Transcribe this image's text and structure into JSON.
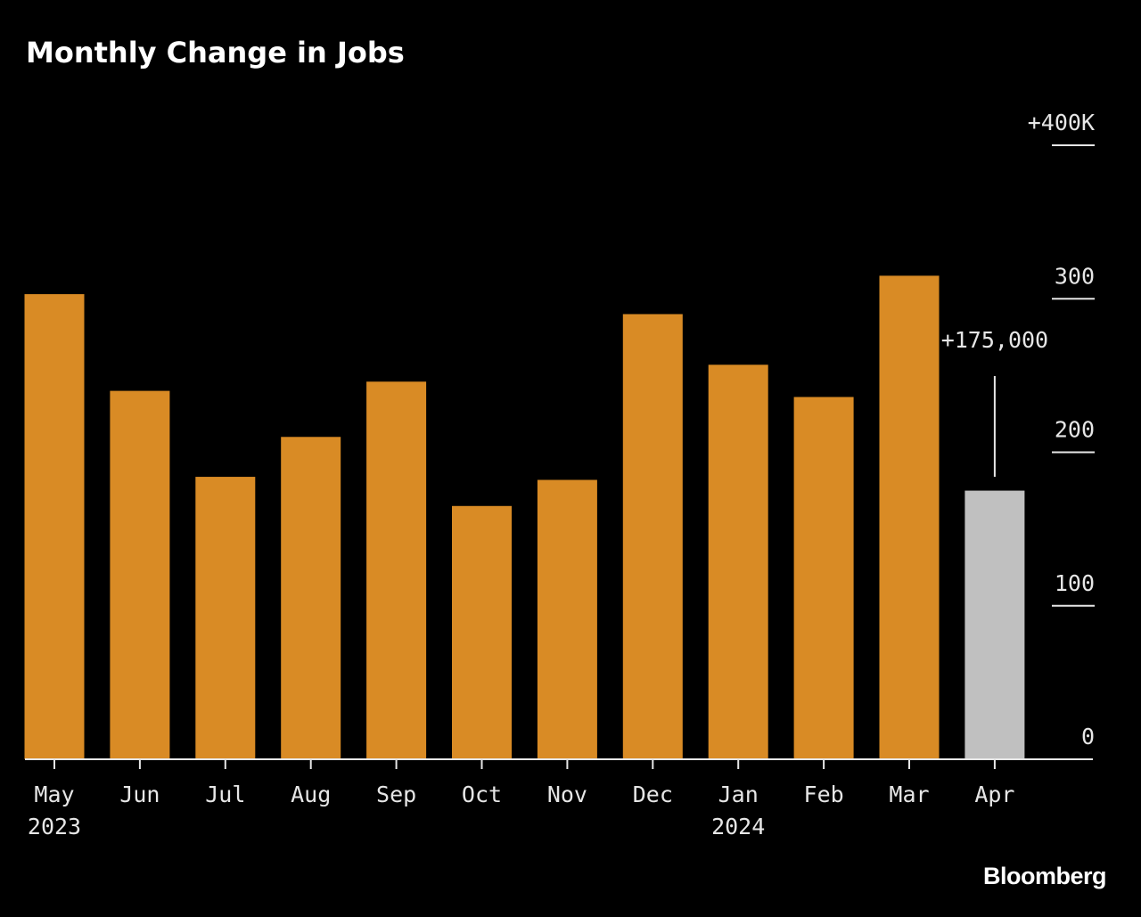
{
  "chart_data": {
    "type": "bar",
    "title": "Monthly Change in Jobs",
    "categories": [
      "May",
      "Jun",
      "Jul",
      "Aug",
      "Sep",
      "Oct",
      "Nov",
      "Dec",
      "Jan",
      "Feb",
      "Mar",
      "Apr"
    ],
    "year_labels": {
      "May": "2023",
      "Jan": "2024"
    },
    "values": [
      303,
      240,
      184,
      210,
      246,
      165,
      182,
      290,
      257,
      236,
      315,
      175
    ],
    "units": "thousands of jobs",
    "ylim": [
      0,
      400
    ],
    "yticks": [
      0,
      100,
      200,
      300,
      400
    ],
    "ytick_labels": [
      "0",
      "100",
      "200",
      "300",
      "+400K"
    ],
    "y_axis_side": "right",
    "grid": false,
    "colors": {
      "default": "#D98B25",
      "highlight": "#C0C0C0",
      "background": "#000000"
    },
    "highlight_index": 11,
    "annotation": {
      "category": "Apr",
      "text": "+175,000"
    }
  },
  "source": "Bloomberg"
}
